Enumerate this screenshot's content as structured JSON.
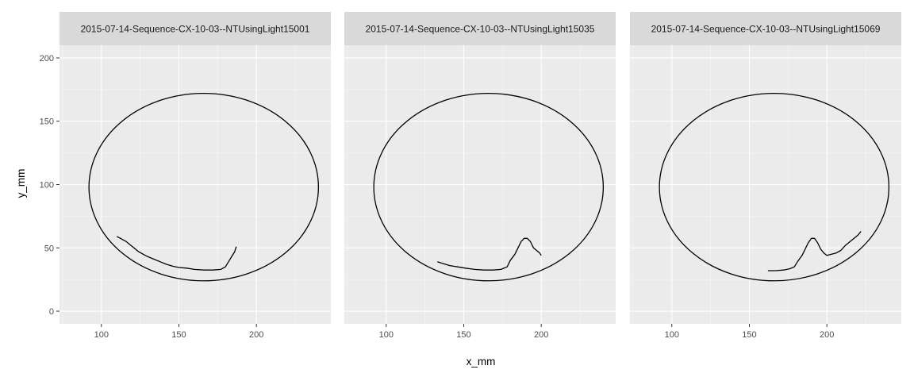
{
  "chart_data": {
    "type": "line",
    "xlabel": "x_mm",
    "ylabel": "y_mm",
    "xlim": [
      73,
      248
    ],
    "ylim": [
      -10,
      210
    ],
    "x_ticks": [
      100,
      150,
      200
    ],
    "y_ticks": [
      0,
      50,
      100,
      150,
      200
    ],
    "grid": true,
    "arena": {
      "center_x": 166,
      "center_y": 98,
      "radius_x": 74,
      "radius_y": 74
    },
    "panels": [
      {
        "title": "2015-07-14-Sequence-CX-10-03--NTUsingLight15001",
        "track": [
          [
            110,
            59
          ],
          [
            113,
            57
          ],
          [
            116,
            55
          ],
          [
            118,
            53
          ],
          [
            121,
            50
          ],
          [
            124,
            47
          ],
          [
            127,
            45
          ],
          [
            130,
            43
          ],
          [
            134,
            41
          ],
          [
            138,
            39
          ],
          [
            142,
            37
          ],
          [
            146,
            35.5
          ],
          [
            150,
            34.5
          ],
          [
            155,
            34
          ],
          [
            160,
            33
          ],
          [
            166,
            32.5
          ],
          [
            172,
            32.5
          ],
          [
            177,
            33
          ],
          [
            180,
            35
          ],
          [
            182,
            39
          ],
          [
            184,
            43
          ],
          [
            186,
            47
          ],
          [
            187,
            51
          ]
        ]
      },
      {
        "title": "2015-07-14-Sequence-CX-10-03--NTUsingLight15035",
        "track": [
          [
            133,
            39
          ],
          [
            137,
            37.5
          ],
          [
            141,
            36
          ],
          [
            146,
            35
          ],
          [
            151,
            34
          ],
          [
            157,
            33
          ],
          [
            163,
            32.5
          ],
          [
            169,
            32.5
          ],
          [
            174,
            33
          ],
          [
            178,
            35
          ],
          [
            180,
            40
          ],
          [
            183,
            45
          ],
          [
            185,
            50
          ],
          [
            187,
            55
          ],
          [
            189,
            57.5
          ],
          [
            191,
            57.5
          ],
          [
            193,
            55
          ],
          [
            195,
            50
          ],
          [
            197,
            48
          ],
          [
            199,
            46
          ],
          [
            200,
            44
          ]
        ]
      },
      {
        "title": "2015-07-14-Sequence-CX-10-03--NTUsingLight15069",
        "track": [
          [
            162,
            32
          ],
          [
            167,
            32
          ],
          [
            172,
            32.5
          ],
          [
            176,
            33.5
          ],
          [
            179,
            35
          ],
          [
            181,
            39
          ],
          [
            184,
            44
          ],
          [
            186,
            49
          ],
          [
            188,
            54
          ],
          [
            190,
            57.5
          ],
          [
            192,
            57.5
          ],
          [
            194,
            54
          ],
          [
            196,
            49
          ],
          [
            198,
            46
          ],
          [
            200,
            44
          ],
          [
            203,
            45
          ],
          [
            206,
            46
          ],
          [
            209,
            48
          ],
          [
            212,
            52
          ],
          [
            215,
            55
          ],
          [
            218,
            58
          ],
          [
            220,
            60
          ],
          [
            222,
            63
          ]
        ]
      }
    ]
  }
}
